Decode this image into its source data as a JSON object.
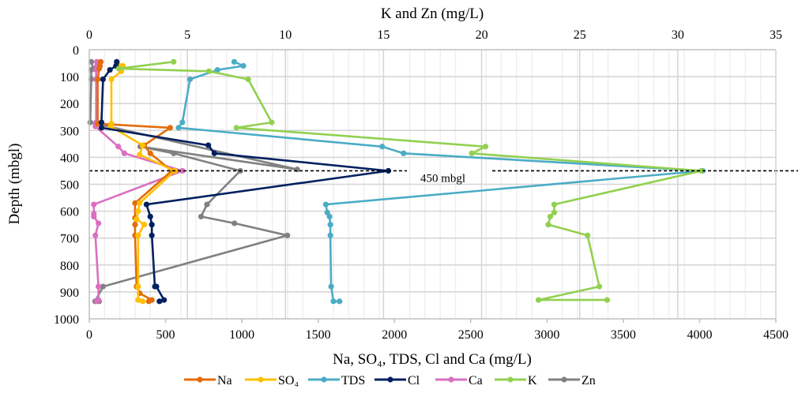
{
  "chart_data": {
    "type": "line",
    "title": "",
    "xlabel": "Na, SO₄, TDS, Cl and Ca (mg/L)",
    "x2label": "K and Zn (mg/L)",
    "ylabel": "Depth (mbgl)",
    "xlim": [
      0,
      4500
    ],
    "x2lim": [
      0,
      35
    ],
    "ylim": [
      0,
      1000
    ],
    "y_inverted": true,
    "xticks": [
      "0",
      "500",
      "1000",
      "1500",
      "2000",
      "2500",
      "3000",
      "3500",
      "4000",
      "4500"
    ],
    "x2ticks": [
      "0",
      "5",
      "10",
      "15",
      "20",
      "25",
      "30",
      "35"
    ],
    "yticks": [
      "0",
      "100",
      "200",
      "300",
      "400",
      "500",
      "600",
      "700",
      "800",
      "900",
      "1000"
    ],
    "grid": true,
    "legend_position": "bottom",
    "annotation": {
      "text": "450 mbgl",
      "depth": 450
    },
    "series": [
      {
        "name": "Na",
        "axis": "bottom",
        "color": "#E36C0A",
        "x": [
          75,
          70,
          65,
          55,
          55,
          530,
          360,
          400,
          540,
          300,
          300,
          300,
          300,
          310,
          330,
          410,
          390
        ],
        "y": [
          45,
          60,
          70,
          110,
          275,
          290,
          355,
          385,
          450,
          570,
          625,
          650,
          690,
          880,
          905,
          930,
          935
        ]
      },
      {
        "name": "SO₄",
        "axis": "bottom",
        "color": "#FFC000",
        "x": [
          200,
          220,
          210,
          145,
          145,
          140,
          350,
          330,
          560,
          330,
          320,
          310,
          360,
          320,
          320,
          320,
          350
        ],
        "y": [
          60,
          60,
          80,
          110,
          275,
          285,
          355,
          390,
          450,
          570,
          600,
          630,
          650,
          690,
          880,
          930,
          935
        ]
      },
      {
        "name": "TDS",
        "axis": "bottom",
        "color": "#4BACC6",
        "x": [
          950,
          1010,
          840,
          660,
          610,
          585,
          1920,
          2060,
          4020,
          1550,
          1560,
          1575,
          1580,
          1580,
          1585,
          1600,
          1640
        ],
        "y": [
          45,
          60,
          75,
          110,
          270,
          290,
          360,
          385,
          450,
          575,
          605,
          620,
          650,
          690,
          880,
          935,
          935
        ]
      },
      {
        "name": "Cl",
        "axis": "bottom",
        "color": "#002060",
        "x": [
          180,
          175,
          135,
          90,
          80,
          80,
          780,
          820,
          1960,
          375,
          400,
          410,
          410,
          430,
          440,
          490,
          460
        ],
        "y": [
          45,
          60,
          75,
          110,
          270,
          290,
          355,
          385,
          450,
          575,
          620,
          650,
          690,
          880,
          880,
          930,
          935
        ]
      },
      {
        "name": "Ca",
        "axis": "bottom",
        "color": "#DA6FC1",
        "x": [
          50,
          50,
          45,
          45,
          45,
          40,
          190,
          230,
          610,
          30,
          30,
          30,
          60,
          40,
          60,
          60,
          50
        ],
        "y": [
          45,
          60,
          75,
          110,
          270,
          285,
          360,
          385,
          450,
          575,
          610,
          620,
          645,
          690,
          880,
          930,
          935
        ]
      },
      {
        "name": "K",
        "axis": "top",
        "color": "#92D050",
        "x": [
          4.3,
          1.5,
          6.1,
          8.1,
          9.3,
          7.5,
          20.2,
          19.5,
          31.2,
          23.7,
          23.7,
          23.5,
          23.4,
          25.4,
          26.0,
          22.9,
          26.4
        ],
        "y": [
          45,
          70,
          80,
          110,
          270,
          290,
          360,
          385,
          450,
          575,
          605,
          620,
          650,
          690,
          880,
          930,
          930
        ]
      },
      {
        "name": "Zn",
        "axis": "top",
        "color": "#808080",
        "x": [
          0.1,
          0.2,
          0.1,
          0.1,
          0.05,
          10.6,
          2.6,
          4.3,
          7.7,
          6.0,
          5.7,
          7.4,
          10.1,
          0.7,
          0.3,
          0.5
        ],
        "y": [
          45,
          70,
          75,
          110,
          270,
          445,
          360,
          385,
          450,
          575,
          620,
          645,
          690,
          880,
          935,
          935
        ]
      }
    ]
  }
}
